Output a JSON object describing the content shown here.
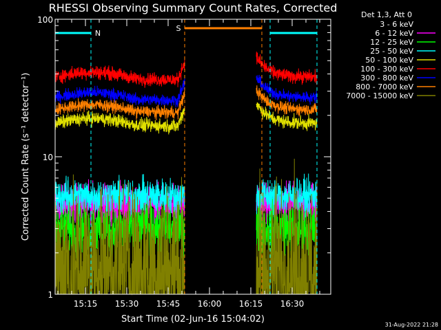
{
  "colors": {
    "background": "#000000",
    "axis": "#ffffff",
    "night_marker": "#00ffff",
    "saa_marker": "#ff8000"
  },
  "chart_data": {
    "type": "line",
    "title": "RHESSI Observing Summary Count Rates, Corrected",
    "xlabel": "Start Time (02-Jun-16 15:04:02)",
    "ylabel": "Corrected Count Rate (s⁻¹ detector⁻¹)",
    "yscale": "log",
    "ylim": [
      1,
      100
    ],
    "y_ticks": [
      1,
      10,
      100
    ],
    "y_tick_labels": [
      "1",
      "10",
      "100"
    ],
    "xlim": [
      "15:04",
      "16:44"
    ],
    "x_ticks": [
      "15:15",
      "15:30",
      "15:45",
      "16:00",
      "16:15",
      "16:30"
    ],
    "legend_title": "Det 1,3, Att 0",
    "legend_position": "right",
    "series": [
      {
        "name": "3 - 6 keV",
        "color": "#000000",
        "level": 1.7,
        "noise": 0.45,
        "with_decay": false
      },
      {
        "name": "6 - 12 keV",
        "color": "#ff00ff",
        "level": 4.5,
        "noise": 0.12,
        "with_decay": false
      },
      {
        "name": "12 - 25 keV",
        "color": "#00ff00",
        "level": 3.0,
        "noise": 0.15,
        "with_decay": false
      },
      {
        "name": "25 - 50 keV",
        "color": "#00ffff",
        "level": 5.2,
        "noise": 0.1,
        "with_decay": false
      },
      {
        "name": "50 - 100 keV",
        "color": "#e0e000",
        "level": 17.5,
        "noise": 0.04,
        "with_decay": true
      },
      {
        "name": "100 - 300 keV",
        "color": "#ff0000",
        "level": 38,
        "noise": 0.04,
        "with_decay": true
      },
      {
        "name": "300 - 800 keV",
        "color": "#0000ff",
        "level": 27,
        "noise": 0.035,
        "with_decay": true
      },
      {
        "name": "800 - 7000 keV",
        "color": "#ff8000",
        "level": 22,
        "noise": 0.035,
        "with_decay": true
      },
      {
        "name": "7000 - 15000 keV",
        "color": "#808000",
        "level": 1.5,
        "noise": 0.5,
        "with_decay": false
      }
    ],
    "segments": [
      {
        "start": "15:04",
        "end": "15:51"
      },
      {
        "start": "16:17",
        "end": "16:39"
      }
    ],
    "night_intervals": [
      {
        "label": "N",
        "start": "15:04",
        "end": "15:17"
      },
      {
        "label": "",
        "start": "16:22",
        "end": "16:39"
      }
    ],
    "saa_intervals": [
      {
        "label": "S",
        "start": "15:51",
        "end": "16:19"
      }
    ]
  },
  "footer": {
    "timestamp": "31-Aug-2022 21:28"
  }
}
